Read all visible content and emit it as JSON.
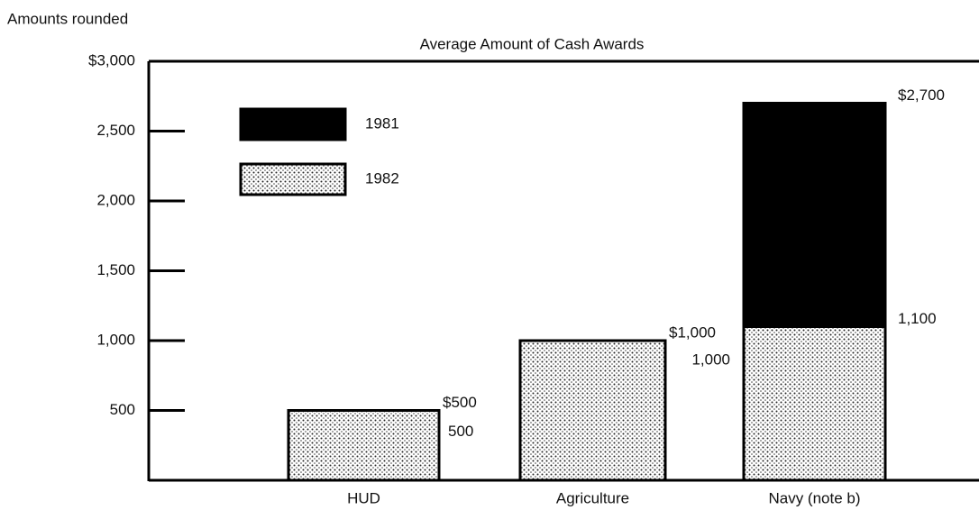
{
  "chart_data": {
    "type": "bar",
    "title": "Average Amount of Cash Awards",
    "y_label": "Amounts rounded",
    "categories": [
      "HUD",
      "Agriculture",
      "Navy (note b)"
    ],
    "series": [
      {
        "name": "1981",
        "color": "#000000",
        "values": [
          500,
          1000,
          2700
        ],
        "value_labels": [
          "$500",
          "$1,000",
          "$2,700"
        ]
      },
      {
        "name": "1982",
        "color": "dotted",
        "values": [
          500,
          1000,
          1100
        ],
        "value_labels": [
          "500",
          "1,000",
          "1,100"
        ]
      }
    ],
    "ylim": [
      0,
      3000
    ],
    "yticks": [
      500,
      {
        "value": 1000,
        "label": "1,000"
      },
      {
        "value": 1500,
        "label": "1,500"
      },
      {
        "value": 2000,
        "label": "2,000"
      },
      {
        "value": 2500,
        "label": "2,500"
      },
      {
        "value": 3000,
        "label": "$3,000"
      }
    ],
    "overlap": true
  }
}
